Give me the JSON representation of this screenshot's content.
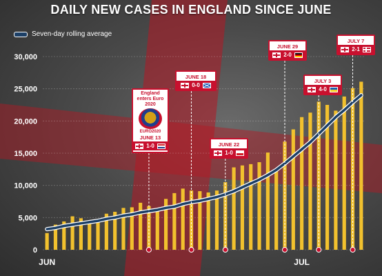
{
  "title": "DAILY NEW CASES IN ENGLAND SINCE JUNE",
  "legend": {
    "label": "Seven-day rolling average"
  },
  "colors": {
    "bar": "#f2c12e",
    "line": "#1c3f66",
    "accent": "#c8102e",
    "axis_text": "#ffffff"
  },
  "chart_data": {
    "type": "bar",
    "title": "DAILY NEW CASES IN ENGLAND SINCE JUNE",
    "xlabel": "",
    "ylabel": "",
    "ylim": [
      0,
      30000
    ],
    "y_ticks": [
      "0",
      "5,000",
      "10,000",
      "15,000",
      "20,000",
      "25,000",
      "30,000"
    ],
    "x_tick_labels": [
      "JUN",
      "JUL"
    ],
    "grid": true,
    "legend_position": "top-left",
    "categories": [
      "Jun 1",
      "Jun 2",
      "Jun 3",
      "Jun 4",
      "Jun 5",
      "Jun 6",
      "Jun 7",
      "Jun 8",
      "Jun 9",
      "Jun 10",
      "Jun 11",
      "Jun 12",
      "Jun 13",
      "Jun 14",
      "Jun 15",
      "Jun 16",
      "Jun 17",
      "Jun 18",
      "Jun 19",
      "Jun 20",
      "Jun 21",
      "Jun 22",
      "Jun 23",
      "Jun 24",
      "Jun 25",
      "Jun 26",
      "Jun 27",
      "Jun 28",
      "Jun 29",
      "Jun 30",
      "Jul 1",
      "Jul 2",
      "Jul 3",
      "Jul 4",
      "Jul 5",
      "Jul 6",
      "Jul 7",
      "Jul 8"
    ],
    "series": [
      {
        "type": "bar",
        "values": [
          2600,
          3900,
          4400,
          5200,
          4900,
          4200,
          4700,
          5600,
          5900,
          6500,
          6600,
          7300,
          6800,
          6100,
          7900,
          8800,
          9500,
          9200,
          9100,
          8900,
          9200,
          10500,
          12800,
          13100,
          13300,
          13600,
          15100,
          12500,
          16800,
          18700,
          20600,
          21300,
          23000,
          22500,
          21600,
          23800,
          25100,
          26100
        ]
      },
      {
        "type": "line",
        "name": "Seven-day rolling average",
        "values": [
          3200,
          3400,
          3700,
          3900,
          4100,
          4300,
          4500,
          4800,
          5000,
          5300,
          5500,
          5800,
          6000,
          6200,
          6500,
          6700,
          7100,
          7400,
          7600,
          7900,
          8200,
          8600,
          9100,
          9700,
          10300,
          10900,
          11600,
          12400,
          13400,
          14500,
          15600,
          16700,
          18000,
          19300,
          20600,
          21700,
          22900,
          24000
        ]
      }
    ],
    "annotations": [
      {
        "heading": "England enters Euro 2020",
        "logo_text": "EURO2020",
        "date": "JUNE 13",
        "score": "1-0",
        "flags": [
          "eng",
          "cro"
        ]
      },
      {
        "date": "JUNE 18",
        "score": "0-0",
        "flags": [
          "eng",
          "sco"
        ]
      },
      {
        "date": "JUNE 22",
        "score": "1-0",
        "flags": [
          "eng",
          "cze"
        ]
      },
      {
        "date": "JUNE 29",
        "score": "2-0",
        "flags": [
          "eng",
          "ger"
        ]
      },
      {
        "date": "JULY 3",
        "score": "4-0",
        "flags": [
          "eng",
          "ukr"
        ]
      },
      {
        "date": "JULY 7",
        "score": "2-1",
        "flags": [
          "eng",
          "den"
        ]
      }
    ]
  }
}
